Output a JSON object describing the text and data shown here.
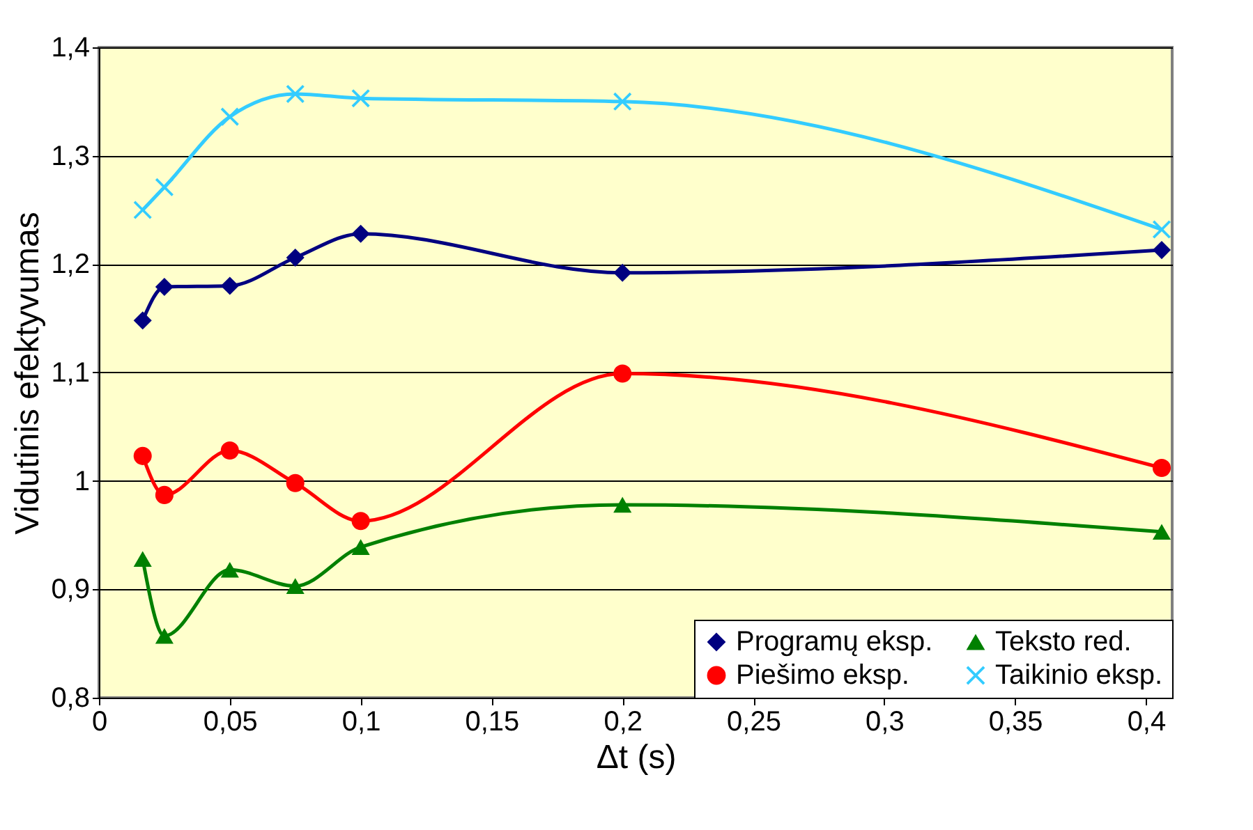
{
  "chart_data": {
    "type": "line",
    "xlabel": "Δt (s)",
    "ylabel": "Vidutinis efektyvumas",
    "x": [
      0.0167,
      0.025,
      0.05,
      0.075,
      0.1,
      0.2,
      0.406
    ],
    "series": [
      {
        "name": "Programų eksp.",
        "color": "#000080",
        "marker": "diamond",
        "values": [
          1.148,
          1.179,
          1.18,
          1.206,
          1.228,
          1.192,
          1.213
        ]
      },
      {
        "name": "Piešimo eksp.",
        "color": "#ff0000",
        "marker": "circle",
        "values": [
          1.023,
          0.987,
          1.028,
          0.998,
          0.963,
          1.099,
          1.012
        ]
      },
      {
        "name": "Teksto red.",
        "color": "#008000",
        "marker": "triangle",
        "values": [
          0.928,
          0.857,
          0.918,
          0.903,
          0.939,
          0.978,
          0.953
        ]
      },
      {
        "name": "Taikinio eksp.",
        "color": "#33ccff",
        "marker": "cross",
        "values": [
          1.25,
          1.271,
          1.336,
          1.357,
          1.353,
          1.35,
          1.232
        ]
      }
    ],
    "xlim": [
      0,
      0.41
    ],
    "ylim": [
      0.8,
      1.4
    ],
    "xticks": [
      0,
      {
        "value": 0.05,
        "label": "0,05"
      },
      {
        "value": 0.1,
        "label": "0,1"
      },
      {
        "value": 0.15,
        "label": "0,15"
      },
      {
        "value": 0.2,
        "label": "0,2"
      },
      {
        "value": 0.25,
        "label": "0,25"
      },
      {
        "value": 0.3,
        "label": "0,3"
      },
      {
        "value": 0.35,
        "label": "0,35"
      },
      {
        "value": 0.4,
        "label": "0,4"
      }
    ],
    "yticks": [
      {
        "value": 0.8,
        "label": "0,8"
      },
      {
        "value": 0.9,
        "label": "0,9"
      },
      1,
      {
        "value": 1.1,
        "label": "1,1"
      },
      {
        "value": 1.2,
        "label": "1,2"
      },
      {
        "value": 1.3,
        "label": "1,3"
      },
      {
        "value": 1.4,
        "label": "1,4"
      }
    ],
    "grid": "y",
    "legend": "bottom right",
    "line_style": "solid"
  }
}
